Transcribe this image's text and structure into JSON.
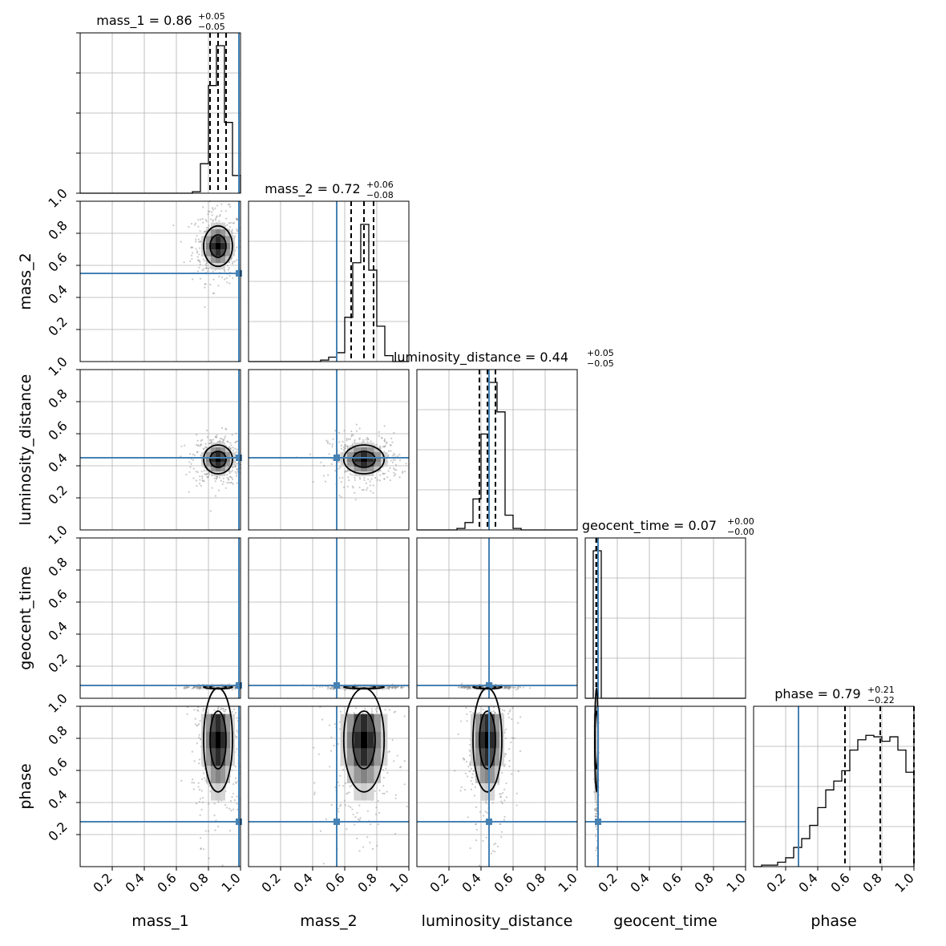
{
  "chart_data": {
    "type": "corner",
    "parameters": [
      "mass_1",
      "mass_2",
      "luminosity_distance",
      "geocent_time",
      "phase"
    ],
    "axis_range": [
      0,
      1
    ],
    "tick_labels": [
      "0.2",
      "0.4",
      "0.6",
      "0.8",
      "1.0"
    ],
    "grid": true,
    "truth_color": "#4682b4",
    "truths": {
      "mass_1": 0.99,
      "mass_2": 0.55,
      "luminosity_distance": 0.45,
      "geocent_time": 0.08,
      "phase": 0.28
    },
    "summaries": [
      {
        "param": "mass_1",
        "title_prefix": "mass_1 = 0.86",
        "upper": "+0.05",
        "lower": "−0.05",
        "median": 0.86,
        "q16": 0.81,
        "q84": 0.91
      },
      {
        "param": "mass_2",
        "title_prefix": "mass_2 = 0.72",
        "upper": "+0.06",
        "lower": "−0.08",
        "median": 0.72,
        "q16": 0.64,
        "q84": 0.78
      },
      {
        "param": "luminosity_distance",
        "title_prefix": "luminosity_distance = 0.44",
        "upper": "+0.05",
        "lower": "−0.05",
        "median": 0.44,
        "q16": 0.39,
        "q84": 0.49
      },
      {
        "param": "geocent_time",
        "title_prefix": "geocent_time = 0.07",
        "upper": "+0.00",
        "lower": "−0.00",
        "median": 0.07,
        "q16": 0.068,
        "q84": 0.072
      },
      {
        "param": "phase",
        "title_prefix": "phase = 0.79",
        "upper": "+0.21",
        "lower": "−0.22",
        "median": 0.79,
        "q16": 0.57,
        "q84": 1.0
      }
    ],
    "histograms": {
      "bins": [
        0.0,
        0.05,
        0.1,
        0.15,
        0.2,
        0.25,
        0.3,
        0.35,
        0.4,
        0.45,
        0.5,
        0.55,
        0.6,
        0.65,
        0.7,
        0.75,
        0.8,
        0.85,
        0.9,
        0.95,
        1.0
      ],
      "mass_1": [
        0,
        0,
        0,
        0,
        0,
        0,
        0,
        0,
        0,
        0,
        0,
        0,
        0,
        0,
        0.01,
        0.2,
        0.73,
        1.0,
        0.48,
        0.12
      ],
      "mass_2": [
        0,
        0,
        0,
        0,
        0,
        0,
        0,
        0,
        0,
        0.01,
        0.03,
        0.06,
        0.3,
        0.67,
        0.93,
        0.62,
        0.24,
        0.04,
        0,
        0
      ],
      "luminosity_distance": [
        0,
        0,
        0,
        0,
        0,
        0.01,
        0.05,
        0.21,
        0.65,
        1.0,
        0.8,
        0.1,
        0.01,
        0,
        0,
        0,
        0,
        0,
        0,
        0
      ],
      "geocent_time": [
        0,
        1.0,
        0,
        0,
        0,
        0,
        0,
        0,
        0,
        0,
        0,
        0,
        0,
        0,
        0,
        0,
        0,
        0,
        0,
        0
      ],
      "phase": [
        0,
        0.01,
        0.01,
        0.03,
        0.06,
        0.13,
        0.19,
        0.28,
        0.4,
        0.52,
        0.58,
        0.65,
        0.79,
        0.86,
        0.89,
        0.88,
        0.85,
        0.88,
        0.79,
        0.64
      ]
    },
    "posterior_2d": [
      {
        "x": "mass_1",
        "y": "mass_2",
        "mx": 0.86,
        "my": 0.72,
        "sx": 0.05,
        "sy": 0.07
      },
      {
        "x": "mass_1",
        "y": "luminosity_distance",
        "mx": 0.86,
        "my": 0.44,
        "sx": 0.05,
        "sy": 0.05
      },
      {
        "x": "mass_2",
        "y": "luminosity_distance",
        "mx": 0.72,
        "my": 0.44,
        "sx": 0.07,
        "sy": 0.05
      },
      {
        "x": "mass_1",
        "y": "geocent_time",
        "mx": 0.86,
        "my": 0.07,
        "sx": 0.05,
        "sy": 0.004
      },
      {
        "x": "mass_2",
        "y": "geocent_time",
        "mx": 0.72,
        "my": 0.07,
        "sx": 0.07,
        "sy": 0.004
      },
      {
        "x": "luminosity_distance",
        "y": "geocent_time",
        "mx": 0.44,
        "my": 0.07,
        "sx": 0.05,
        "sy": 0.004
      },
      {
        "x": "mass_1",
        "y": "phase",
        "mx": 0.86,
        "my": 0.79,
        "sx": 0.05,
        "sy": 0.18
      },
      {
        "x": "mass_2",
        "y": "phase",
        "mx": 0.72,
        "my": 0.79,
        "sx": 0.07,
        "sy": 0.18
      },
      {
        "x": "luminosity_distance",
        "y": "phase",
        "mx": 0.44,
        "my": 0.79,
        "sx": 0.05,
        "sy": 0.18
      },
      {
        "x": "geocent_time",
        "y": "phase",
        "mx": 0.07,
        "my": 0.79,
        "sx": 0.004,
        "sy": 0.18
      }
    ]
  }
}
